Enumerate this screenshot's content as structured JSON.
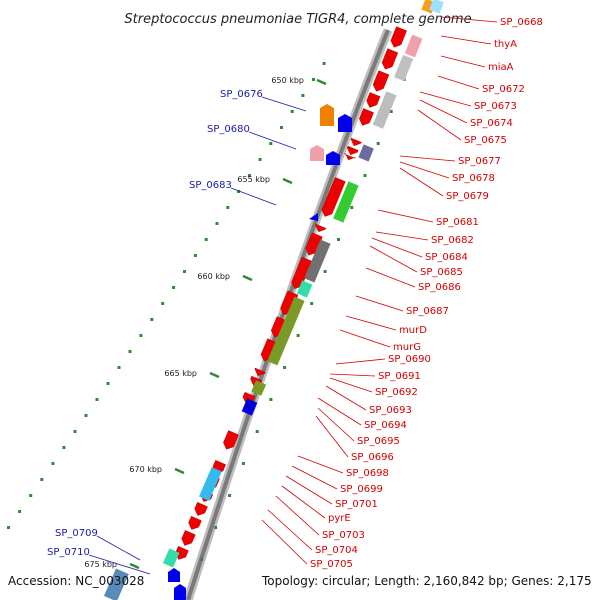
{
  "title": "Streptococcus pneumoniae TIGR4, complete genome",
  "footer": {
    "accession": "Accession: NC_003028",
    "topology": "Topology: circular; Length: 2,160,842 bp; Genes: 2,175"
  },
  "scale_ticks": [
    "650 kbp",
    "655 kbp",
    "660 kbp",
    "665 kbp",
    "670 kbp",
    "675 kbp"
  ],
  "colors": {
    "forward_label": "#d40000",
    "reverse_label": "#1a1aaa",
    "backbone": "#888888"
  },
  "forward_genes": [
    "SP_0668",
    "thyA",
    "miaA",
    "SP_0672",
    "SP_0673",
    "SP_0674",
    "SP_0675",
    "SP_0677",
    "SP_0678",
    "SP_0679",
    "SP_0681",
    "SP_0682",
    "SP_0684",
    "SP_0685",
    "SP_0686",
    "SP_0687",
    "murD",
    "murG",
    "SP_0690",
    "SP_0691",
    "SP_0692",
    "SP_0693",
    "SP_0694",
    "SP_0695",
    "SP_0696",
    "SP_0698",
    "SP_0699",
    "SP_0701",
    "pyrE",
    "SP_0703",
    "SP_0704",
    "SP_0705"
  ],
  "reverse_genes": [
    "SP_0676",
    "SP_0680",
    "SP_0683",
    "SP_0709",
    "SP_0710"
  ]
}
